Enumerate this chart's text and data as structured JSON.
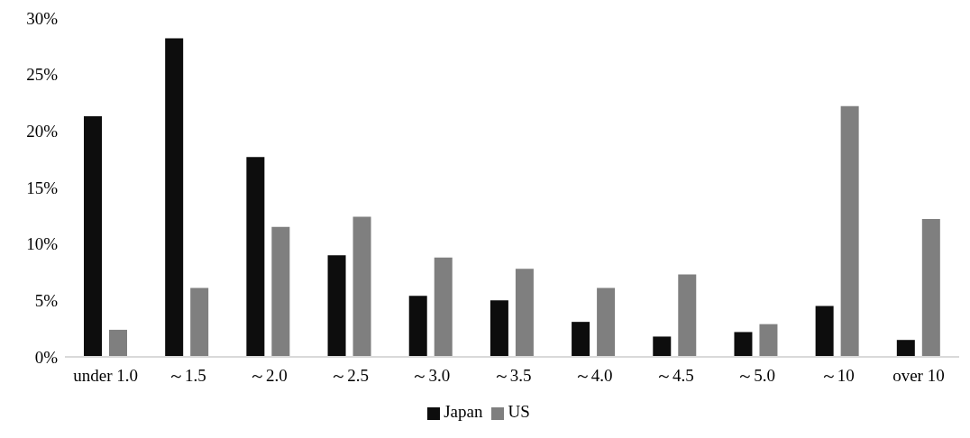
{
  "chart_data": {
    "type": "bar",
    "categories": [
      "under 1.0",
      "～1.5",
      "～2.0",
      "～2.5",
      "～3.0",
      "～3.5",
      "～4.0",
      "～4.5",
      "～5.0",
      "～10",
      "over 10"
    ],
    "series": [
      {
        "name": "Japan",
        "color": "#0d0d0d",
        "values": [
          21.3,
          28.2,
          17.7,
          9.0,
          5.4,
          5.0,
          3.1,
          1.8,
          2.2,
          4.5,
          1.5
        ]
      },
      {
        "name": "US",
        "color": "#7f7f7f",
        "values": [
          2.4,
          6.1,
          11.5,
          12.4,
          8.8,
          7.8,
          6.1,
          7.3,
          2.9,
          22.2,
          12.2
        ]
      }
    ],
    "ylim": [
      0,
      30
    ],
    "yticks": [
      {
        "value": 0,
        "label": "0%"
      },
      {
        "value": 5,
        "label": "5%"
      },
      {
        "value": 10,
        "label": "10%"
      },
      {
        "value": 15,
        "label": "15%"
      },
      {
        "value": 20,
        "label": "20%"
      },
      {
        "value": 25,
        "label": "25%"
      },
      {
        "value": 30,
        "label": "30%"
      }
    ],
    "grid": false,
    "legend": "bottom"
  }
}
